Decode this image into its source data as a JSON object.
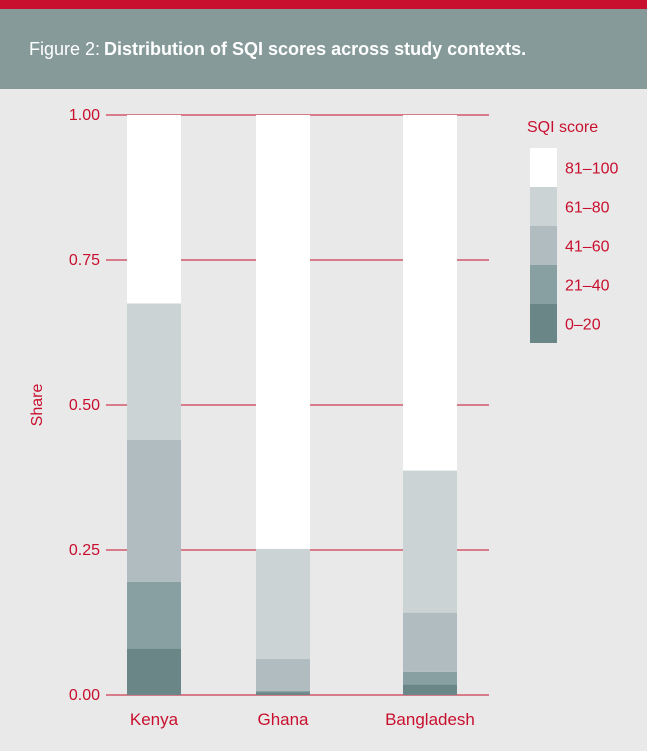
{
  "figure": {
    "prefix": "Figure 2:",
    "title": "Distribution of SQI scores across study contexts."
  },
  "colors": {
    "accent": "#c8102e",
    "header_bg": "#869a9a",
    "background": "#e9e9ea"
  },
  "chart_data": {
    "type": "bar",
    "stacked": true,
    "categories": [
      "Kenya",
      "Ghana",
      "Bangladesh"
    ],
    "ylabel": "Share",
    "ylim": [
      0,
      1
    ],
    "yticks": [
      "0.00",
      "0.25",
      "0.50",
      "0.75",
      "1.00"
    ],
    "grid": true,
    "legend": {
      "title": "SQI score",
      "position": "right"
    },
    "series": [
      {
        "name": "0–20",
        "color": "#6b8687",
        "values": [
          0.08,
          0.005,
          0.018
        ]
      },
      {
        "name": "21–40",
        "color": "#88a0a1",
        "values": [
          0.115,
          0.002,
          0.022
        ]
      },
      {
        "name": "41–60",
        "color": "#b0bcc0",
        "values": [
          0.245,
          0.055,
          0.102
        ]
      },
      {
        "name": "61–80",
        "color": "#cbd3d4",
        "values": [
          0.235,
          0.19,
          0.245
        ]
      },
      {
        "name": "81–100",
        "color": "#ffffff",
        "values": [
          0.325,
          0.748,
          0.613
        ]
      }
    ]
  }
}
